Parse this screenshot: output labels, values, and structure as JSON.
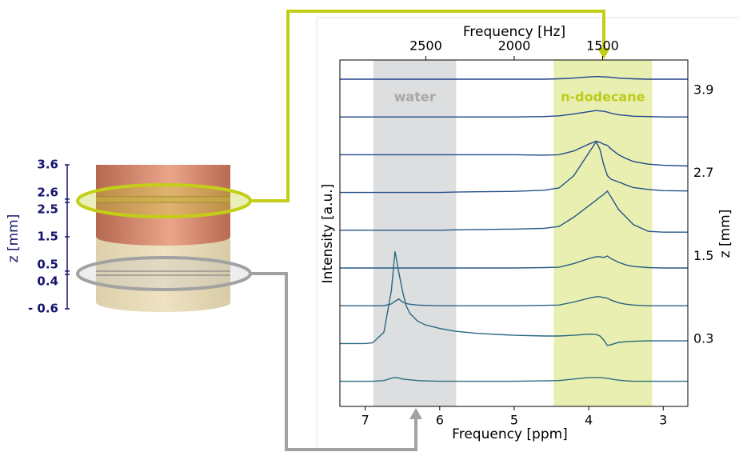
{
  "chart_data": [
    {
      "type": "stacked-spectra",
      "x_label": "Frequency [ppm]",
      "x2_label": "Frequency [Hz]",
      "y_label": "Intensity [a.u.]",
      "y2_label": "z [mm]",
      "xlim": [
        7.34,
        2.67
      ],
      "xticks": [
        7,
        6,
        5,
        4,
        3
      ],
      "x2lim": [
        2986,
        1018
      ],
      "x2ticks": [
        2500,
        2000,
        1500
      ],
      "y2lim": [
        -0.67,
        4.34
      ],
      "y2ticks": [
        3.9,
        2.7,
        1.5,
        0.3
      ],
      "bands": [
        {
          "label": "water",
          "range": [
            6.89,
            5.78
          ],
          "color": "#dcdedf",
          "label_color": "#a8a8a8"
        },
        {
          "label": "n-dodecane",
          "range": [
            4.47,
            3.15
          ],
          "color": "#e8efb0",
          "label_color": "#bccb1c"
        }
      ],
      "x": [
        7.34,
        7.0,
        6.9,
        6.75,
        6.65,
        6.6,
        6.55,
        6.5,
        6.45,
        6.4,
        6.3,
        6.2,
        6.0,
        5.8,
        5.5,
        5.0,
        4.6,
        4.4,
        4.2,
        4.0,
        3.9,
        3.85,
        3.8,
        3.75,
        3.7,
        3.6,
        3.5,
        3.4,
        3.2,
        3.0,
        2.67
      ],
      "series": [
        {
          "color": "#233f8e",
          "values": [
            0,
            0,
            0,
            0,
            0,
            0,
            0,
            0,
            0,
            0,
            0,
            0,
            0,
            0,
            0,
            0,
            0,
            0.01,
            0.03,
            0.06,
            0.07,
            0.07,
            0.06,
            0.06,
            0.05,
            0.03,
            0.02,
            0.01,
            0,
            0,
            0
          ]
        },
        {
          "color": "#24448e",
          "values": [
            0,
            0,
            0,
            0,
            0,
            0,
            0,
            0,
            0,
            0,
            0,
            0,
            0,
            0,
            0,
            0,
            0.01,
            0.03,
            0.08,
            0.14,
            0.17,
            0.16,
            0.15,
            0.13,
            0.1,
            0.06,
            0.04,
            0.02,
            0.01,
            0,
            0
          ]
        },
        {
          "color": "#254a8c",
          "values": [
            0,
            0,
            0,
            0,
            0,
            0,
            0,
            0,
            0,
            0,
            0,
            0,
            0,
            0,
            0,
            0,
            -0.01,
            0,
            0.1,
            0.28,
            0.36,
            0.33,
            0.28,
            0.25,
            0.15,
            0,
            -0.1,
            -0.18,
            -0.25,
            -0.28,
            -0.3
          ]
        },
        {
          "color": "#26508a",
          "values": [
            0,
            0,
            0,
            0,
            0,
            0,
            0,
            0,
            0,
            0,
            0,
            0,
            0,
            0.01,
            0.02,
            0.03,
            0.06,
            0.12,
            0.45,
            1.05,
            1.35,
            1.15,
            0.75,
            0.45,
            0.35,
            0.28,
            0.2,
            0.13,
            0.08,
            0.05,
            0.04
          ]
        },
        {
          "color": "#275688",
          "values": [
            0,
            0,
            0,
            0,
            0,
            0,
            0,
            0,
            0,
            0,
            0,
            0,
            0,
            0.01,
            0.02,
            0.03,
            0.05,
            0.1,
            0.35,
            0.65,
            0.8,
            0.88,
            0.95,
            1.04,
            0.88,
            0.55,
            0.35,
            0.15,
            -0.03,
            -0.05,
            -0.05
          ]
        },
        {
          "color": "#285c86",
          "values": [
            0,
            0,
            0,
            0,
            0,
            0,
            0,
            0,
            0,
            0,
            0,
            0,
            0,
            0,
            0,
            0,
            0.01,
            0.02,
            0.12,
            0.25,
            0.3,
            0.3,
            0.28,
            0.32,
            0.25,
            0.15,
            0.08,
            0.04,
            0.01,
            0,
            0
          ]
        },
        {
          "color": "#296283",
          "values": [
            0,
            0,
            0,
            0,
            0.05,
            0.12,
            0.18,
            0.1,
            0.06,
            0.04,
            0.02,
            0.01,
            0,
            0,
            0,
            0,
            0.01,
            0.02,
            0.1,
            0.2,
            0.24,
            0.24,
            0.22,
            0.2,
            0.15,
            0.08,
            0.04,
            0.02,
            0,
            0,
            0
          ]
        },
        {
          "color": "#2a6880",
          "values": [
            0,
            0,
            0.02,
            0.3,
            1.4,
            2.45,
            1.9,
            1.4,
            1.0,
            0.8,
            0.6,
            0.5,
            0.4,
            0.33,
            0.27,
            0.22,
            0.2,
            0.2,
            0.22,
            0.25,
            0.24,
            0.2,
            0.1,
            -0.05,
            -0.03,
            0.03,
            0.05,
            0.06,
            0.07,
            0.07,
            0.07
          ]
        },
        {
          "color": "#2b6e7d",
          "values": [
            0,
            0,
            0,
            0.02,
            0.08,
            0.1,
            0.09,
            0.06,
            0.05,
            0.04,
            0.02,
            0.01,
            0,
            0,
            0,
            0,
            0.01,
            0.02,
            0.06,
            0.1,
            0.1,
            0.1,
            0.09,
            0.08,
            0.06,
            0.03,
            0.01,
            0,
            0,
            0,
            0
          ]
        }
      ]
    },
    {
      "type": "z-axis",
      "y_label": "z [mm]",
      "color": "#14146b",
      "ylim": [
        -0.6,
        3.6
      ],
      "yticks": [
        3.6,
        2.6,
        2.5,
        1.5,
        0.5,
        0.4,
        {
          "value": -0.6,
          "label": "- 0.6"
        }
      ]
    }
  ]
}
